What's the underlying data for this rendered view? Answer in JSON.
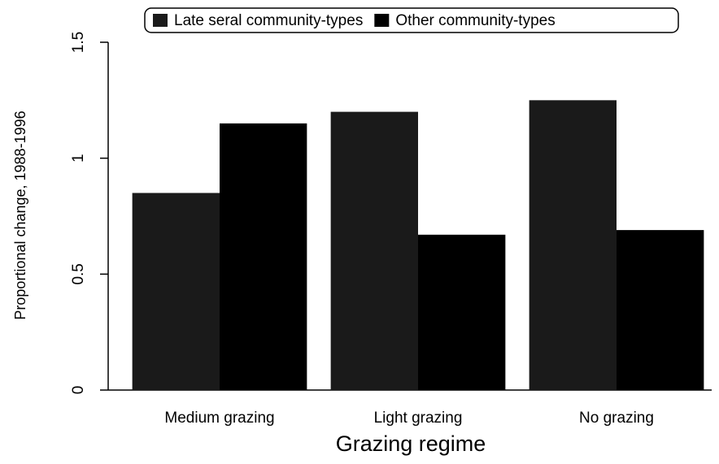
{
  "chart_data": {
    "type": "bar",
    "x_label": "Grazing regime",
    "y_label": "Proportional change, 1988-1996",
    "categories": [
      "Medium grazing",
      "Light grazing",
      "No grazing"
    ],
    "series": [
      {
        "name": "Late seral community-types",
        "color": "#1a1a1a",
        "values": [
          0.85,
          1.2,
          1.25
        ]
      },
      {
        "name": "Other community-types",
        "color": "#000000",
        "values": [
          1.15,
          0.67,
          0.69
        ]
      }
    ],
    "ylim": [
      0,
      1.5
    ],
    "yticks": [
      0,
      0.5,
      1,
      1.5
    ],
    "legend": "top"
  }
}
